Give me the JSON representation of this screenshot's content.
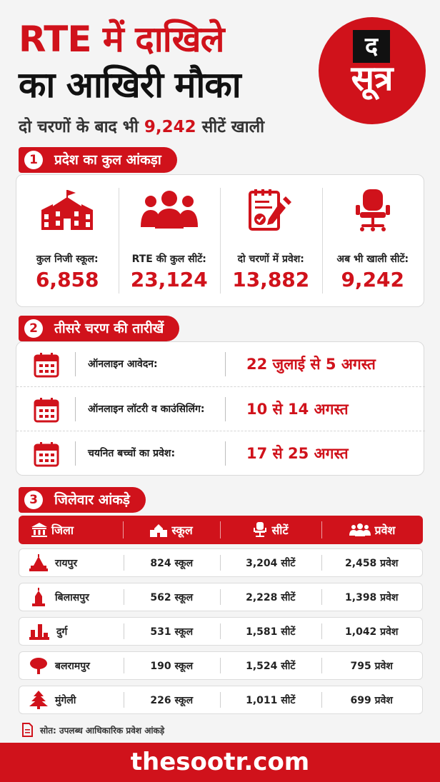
{
  "header": {
    "title_line1": "RTE में दाखिले",
    "title_line2": "का आखिरी मौका",
    "subtitle_prefix": "दो चरणों के बाद भी",
    "subtitle_number": "9,242",
    "subtitle_suffix": "सीटें खाली"
  },
  "logo": {
    "top": "द",
    "bottom": "सूत्र"
  },
  "section1": {
    "number": "1",
    "title": "प्रदेश का कुल आंकड़ा",
    "stats": [
      {
        "label": "कुल निजी स्कूल:",
        "value": "6,858",
        "icon": "school-icon"
      },
      {
        "label": "RTE की कुल सीटें:",
        "value": "23,124",
        "icon": "people-icon"
      },
      {
        "label": "दो चरणों में प्रवेश:",
        "value": "13,882",
        "icon": "form-icon"
      },
      {
        "label": "अब भी खाली सीटें:",
        "value": "9,242",
        "icon": "chair-icon"
      }
    ]
  },
  "section2": {
    "number": "2",
    "title": "तीसरे चरण की तारीखें",
    "rows": [
      {
        "label": "ऑनलाइन आवेदन:",
        "value": "22 जुलाई से 5 अगस्त"
      },
      {
        "label": "ऑनलाइन लॉटरी व काउंसिलिंग:",
        "value": "10 से 14 अगस्त"
      },
      {
        "label": "चयनित बच्चों का प्रवेश:",
        "value": "17 से 25 अगस्त"
      }
    ]
  },
  "section3": {
    "number": "3",
    "title": "जिलेवार आंकड़े",
    "headers": {
      "district": "जिला",
      "schools": "स्कूल",
      "seats": "सीटें",
      "admissions": "प्रवेश"
    },
    "rows": [
      {
        "district": "रायपुर",
        "schools": "824 स्कूल",
        "seats": "3,204 सीटें",
        "admissions": "2,458 प्रवेश"
      },
      {
        "district": "बिलासपुर",
        "schools": "562 स्कूल",
        "seats": "2,228 सीटें",
        "admissions": "1,398 प्रवेश"
      },
      {
        "district": "दुर्ग",
        "schools": "531 स्कूल",
        "seats": "1,581 सीटें",
        "admissions": "1,042 प्रवेश"
      },
      {
        "district": "बलरामपुर",
        "schools": "190 स्कूल",
        "seats": "1,524 सीटें",
        "admissions": "795 प्रवेश"
      },
      {
        "district": "मुंगेली",
        "schools": "226 स्कूल",
        "seats": "1,011 सीटें",
        "admissions": "699 प्रवेश"
      }
    ]
  },
  "source": "सोत: उपलब्ध आधिकारिक प्रवेश आंकड़े",
  "footer": "thesootr.com",
  "colors": {
    "accent": "#d0121b",
    "text": "#1a1a1a",
    "background": "#f4f4f4"
  }
}
